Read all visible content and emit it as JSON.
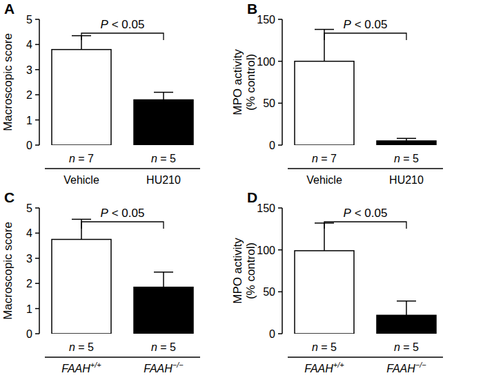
{
  "chart_data": [
    {
      "type": "bar",
      "title": "A",
      "ylabel": [
        "Macroscopic score"
      ],
      "categories": [
        "Vehicle",
        "HU210"
      ],
      "n_labels": [
        "n = 7",
        "n = 5"
      ],
      "values": [
        3.8,
        1.8
      ],
      "errors": [
        0.55,
        0.3
      ],
      "colors": [
        "#ffffff",
        "#000000"
      ],
      "ylim": [
        0,
        5
      ],
      "yticks": [
        0,
        1,
        2,
        3,
        4,
        5
      ],
      "annotation": "P < 0.05",
      "grid": false
    },
    {
      "type": "bar",
      "title": "B",
      "ylabel": [
        "MPO activity",
        "(% control)"
      ],
      "categories": [
        "Vehicle",
        "HU210"
      ],
      "n_labels": [
        "n = 7",
        "n = 5"
      ],
      "values": [
        100,
        5
      ],
      "errors": [
        38,
        3
      ],
      "colors": [
        "#ffffff",
        "#000000"
      ],
      "ylim": [
        0,
        150
      ],
      "yticks": [
        0,
        50,
        100,
        150
      ],
      "annotation": "P < 0.05",
      "grid": false
    },
    {
      "type": "bar",
      "title": "C",
      "ylabel": [
        "Macroscopic score"
      ],
      "categories": [
        "FAAH+/+",
        "FAAH−/−"
      ],
      "n_labels": [
        "n = 5",
        "n = 5"
      ],
      "values": [
        3.75,
        1.85
      ],
      "errors": [
        0.8,
        0.6
      ],
      "colors": [
        "#ffffff",
        "#000000"
      ],
      "ylim": [
        0,
        5
      ],
      "yticks": [
        0,
        1,
        2,
        3,
        4,
        5
      ],
      "annotation": "P < 0.05",
      "grid": false
    },
    {
      "type": "bar",
      "title": "D",
      "ylabel": [
        "MPO activity",
        "(% control)"
      ],
      "categories": [
        "FAAH+/+",
        "FAAH−/−"
      ],
      "n_labels": [
        "n = 5",
        "n = 5"
      ],
      "values": [
        99,
        22
      ],
      "errors": [
        33,
        17
      ],
      "colors": [
        "#ffffff",
        "#000000"
      ],
      "ylim": [
        0,
        150
      ],
      "yticks": [
        0,
        50,
        100,
        150
      ],
      "annotation": "P < 0.05",
      "grid": false
    }
  ]
}
